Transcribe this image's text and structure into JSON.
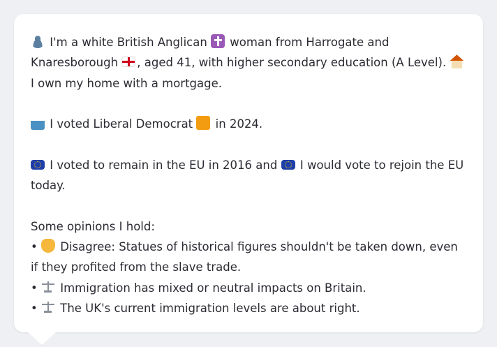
{
  "message": {
    "intro": {
      "line_a": "I'm a white British Anglican",
      "line_b": "woman from Harrogate and Knaresborough",
      "line_c": ", aged 41, with higher secondary education (A Level).",
      "line_d": "I own my home with a mortgage."
    },
    "vote": {
      "text_a": "I voted Liberal Democrat",
      "text_b": "in 2024."
    },
    "eu": {
      "text_a": "I voted to remain in the EU in 2016 and",
      "text_b": "I would vote to rejoin the EU today."
    },
    "opinions": {
      "heading": "Some opinions I hold:",
      "items": [
        {
          "bullet": "•",
          "text": "Disagree: Statues of historical figures shouldn't be taken down, even if they profited from the slave trade."
        },
        {
          "bullet": "•",
          "text": "Immigration has mixed or neutral impacts on Britain."
        },
        {
          "bullet": "•",
          "text": "The UK's current immigration levels are about right."
        }
      ]
    }
  },
  "icons": {
    "person": "person-silhouette-icon",
    "cross": "latin-cross-icon",
    "england_flag": "england-flag-icon",
    "house": "house-icon",
    "ballot": "ballot-box-icon",
    "party_square": "orange-square-icon",
    "eu_flag": "eu-flag-icon",
    "thumbs_down": "thumbs-down-icon",
    "scales": "balance-scale-icon"
  },
  "colors": {
    "background": "#eef0f3",
    "bubble": "#ffffff",
    "text": "#2b2b33",
    "liberal_democrat": "#f39c12"
  }
}
